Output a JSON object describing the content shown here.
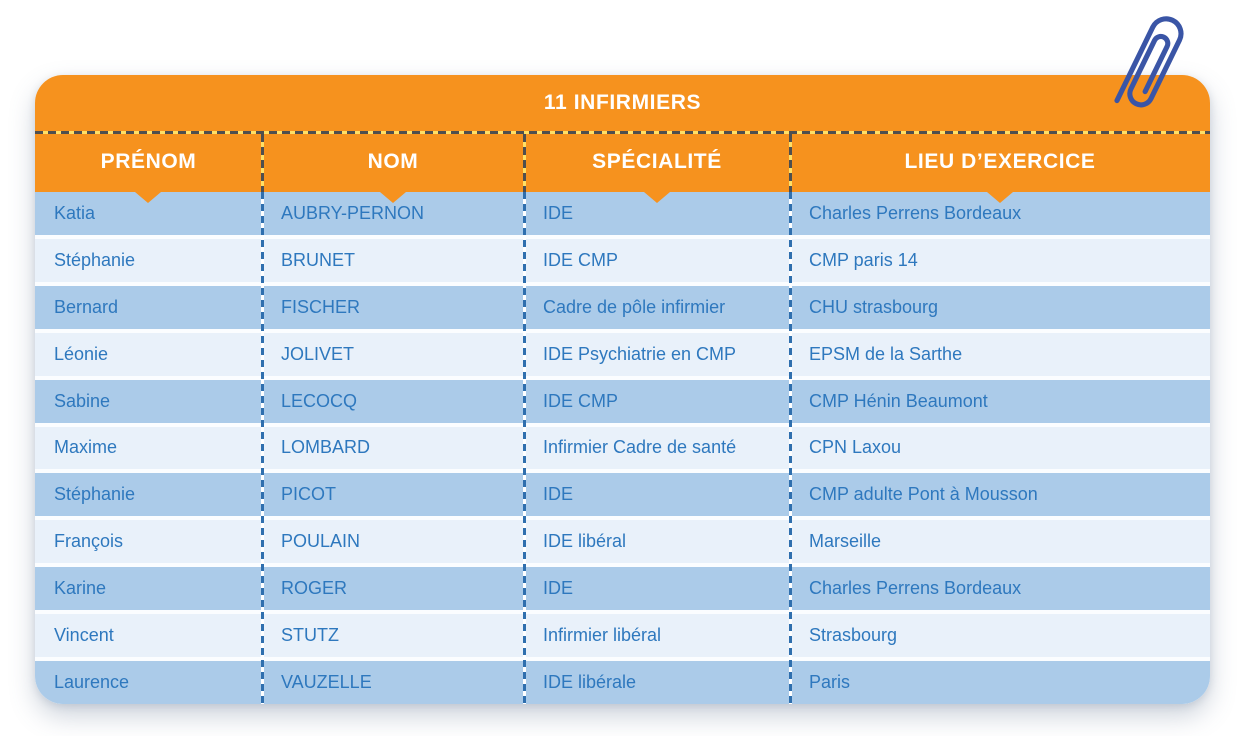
{
  "title": "11 INFIRMIERS",
  "table": {
    "columns": [
      "PRÉNOM",
      "NOM",
      "SPÉCIALITÉ",
      "LIEU D’EXERCICE"
    ],
    "rows": [
      {
        "prenom": "Katia",
        "nom": "AUBRY-PERNON",
        "specialite": "IDE",
        "lieu": "Charles Perrens Bordeaux"
      },
      {
        "prenom": "Stéphanie",
        "nom": "BRUNET",
        "specialite": "IDE CMP",
        "lieu": "CMP paris 14"
      },
      {
        "prenom": "Bernard",
        "nom": "FISCHER",
        "specialite": "Cadre de pôle infirmier",
        "lieu": "CHU strasbourg"
      },
      {
        "prenom": "Léonie",
        "nom": "JOLIVET",
        "specialite": "IDE Psychiatrie en CMP",
        "lieu": "EPSM de la Sarthe"
      },
      {
        "prenom": "Sabine",
        "nom": "LECOCQ",
        "specialite": "IDE CMP",
        "lieu": "CMP Hénin Beaumont"
      },
      {
        "prenom": "Maxime",
        "nom": "LOMBARD",
        "specialite": "Infirmier Cadre de santé",
        "lieu": "CPN Laxou"
      },
      {
        "prenom": "Stéphanie",
        "nom": "PICOT",
        "specialite": "IDE",
        "lieu": "CMP adulte Pont à Mousson"
      },
      {
        "prenom": "François",
        "nom": "POULAIN",
        "specialite": "IDE libéral",
        "lieu": "Marseille"
      },
      {
        "prenom": "Karine",
        "nom": "ROGER",
        "specialite": "IDE",
        "lieu": "Charles Perrens Bordeaux"
      },
      {
        "prenom": "Vincent",
        "nom": "STUTZ",
        "specialite": "Infirmier libéral",
        "lieu": "Strasbourg"
      },
      {
        "prenom": "Laurence",
        "nom": "VAUZELLE",
        "specialite": "IDE libérale",
        "lieu": "Paris"
      }
    ]
  },
  "colors": {
    "orange": "#f6921e",
    "row_dark": "#abcbe9",
    "row_light": "#e9f1fa",
    "text_blue": "#2e78be",
    "dash_dark": "#4f4f4f",
    "dash_gold": "#ffe066",
    "paperclip_blue": "#3a55a6",
    "gap_white": "#fbfdff"
  }
}
